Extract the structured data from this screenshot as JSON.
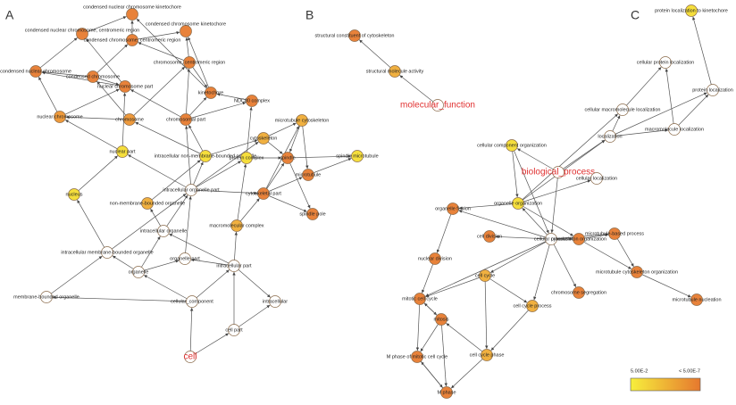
{
  "panels": [
    "A",
    "B",
    "C"
  ],
  "nodes": [
    {
      "label": "condensed nuclear chromosome kinetochore",
      "fill": "#e8823a"
    },
    {
      "label": "condensed chromosome kinetochore",
      "fill": "#e8823a"
    },
    {
      "label": "condensed nuclear chromosome, centromeric region",
      "fill": "#e8823a"
    },
    {
      "label": "condensed chromosome, centromeric region",
      "fill": "#e8823a"
    },
    {
      "label": "condensed nuclear chromosome",
      "fill": "#e8823a"
    },
    {
      "label": "condensed chromosome",
      "fill": "#e8823a"
    },
    {
      "label": "nuclear chromosome part",
      "fill": "#e8823a"
    },
    {
      "label": "chromosome, centromeric region",
      "fill": "#e8823a"
    },
    {
      "label": "kinetochore",
      "fill": "#e8823a"
    },
    {
      "label": "NDC80 complex",
      "fill": "#e8823a"
    },
    {
      "label": "nuclear chromosome",
      "fill": "#ee9a3c"
    },
    {
      "label": "chromosome",
      "fill": "#ee9a3c"
    },
    {
      "label": "chromosomal part",
      "fill": "#e8823a"
    },
    {
      "label": "microtubule cytoskeleton",
      "fill": "#f0b040"
    },
    {
      "label": "cytoskeleton",
      "fill": "#f0b040"
    },
    {
      "label": "intracellular non-membrane-bounded organelle",
      "fill": "#f5de3c"
    },
    {
      "label": "protein complex",
      "fill": "#f5de3c"
    },
    {
      "label": "spindle",
      "fill": "#e8823a"
    },
    {
      "label": "spindle microtubule",
      "fill": "#f5de3c"
    },
    {
      "label": "microtubule",
      "fill": "#e8823a"
    },
    {
      "label": "nuclear part",
      "fill": "#f5de3c"
    },
    {
      "label": "nucleus",
      "fill": "#f5de3c"
    },
    {
      "label": "intracellular organelle part",
      "fill": "#ffffff"
    },
    {
      "label": "cytoskeletal part",
      "fill": "#e8823a"
    },
    {
      "label": "spindle pole",
      "fill": "#e8823a"
    },
    {
      "label": "non-membrane-bounded organelle",
      "fill": "#f0b040"
    },
    {
      "label": "intracellular organelle",
      "fill": "#ffffff"
    },
    {
      "label": "macromolecular complex",
      "fill": "#f0b040"
    },
    {
      "label": "intracellular membrane-bounded organelle",
      "fill": "#ffffff"
    },
    {
      "label": "organelle part",
      "fill": "#ffffff"
    },
    {
      "label": "organelle",
      "fill": "#ffffff"
    },
    {
      "label": "intracellular part",
      "fill": "#ffffff"
    },
    {
      "label": "membrane-bounded organelle",
      "fill": "#ffffff"
    },
    {
      "label": "cellular_component",
      "fill": "#ffffff"
    },
    {
      "label": "intracellular",
      "fill": "#ffffff"
    },
    {
      "label": "cell part",
      "fill": "#ffffff"
    },
    {
      "label": "cell",
      "fill": "#ffffff"
    },
    {
      "label": "structural constituent of cytoskeleton",
      "fill": "#e8823a"
    },
    {
      "label": "structural molecule activity",
      "fill": "#f0b040"
    },
    {
      "label": "molecular_function",
      "fill": "#ffffff"
    },
    {
      "label": "protein localization to kinetochore",
      "fill": "#f5de3c"
    },
    {
      "label": "cellular protein localization",
      "fill": "#ffffff"
    },
    {
      "label": "protein localization",
      "fill": "#ffffff"
    },
    {
      "label": "cellular macromolecule localization",
      "fill": "#ffffff"
    },
    {
      "label": "macromolecule localization",
      "fill": "#ffffff"
    },
    {
      "label": "localization",
      "fill": "#ffffff"
    },
    {
      "label": "cellular component organization",
      "fill": "#f5de3c"
    },
    {
      "label": "biological_process",
      "fill": "#ffffff"
    },
    {
      "label": "cellular localization",
      "fill": "#ffffff"
    },
    {
      "label": "organelle organization",
      "fill": "#f5de3c"
    },
    {
      "label": "organelle fission",
      "fill": "#e8823a"
    },
    {
      "label": "cell division",
      "fill": "#e8823a"
    },
    {
      "label": "cellular process",
      "fill": "#ffffff"
    },
    {
      "label": "cytoskeleton organization",
      "fill": "#e8823a"
    },
    {
      "label": "microtubule-based process",
      "fill": "#e8823a"
    },
    {
      "label": "nuclear division",
      "fill": "#e8823a"
    },
    {
      "label": "microtubule cytoskeleton organization",
      "fill": "#e8823a"
    },
    {
      "label": "cell cycle",
      "fill": "#f0b040"
    },
    {
      "label": "mitotic cell cycle",
      "fill": "#e8823a"
    },
    {
      "label": "chromosome segregation",
      "fill": "#e8823a"
    },
    {
      "label": "cell cycle process",
      "fill": "#f0b040"
    },
    {
      "label": "microtubule nucleation",
      "fill": "#e8823a"
    },
    {
      "label": "mitosis",
      "fill": "#e8823a"
    },
    {
      "label": "M phase of mitotic cell cycle",
      "fill": "#e8823a"
    },
    {
      "label": "cell cycle phase",
      "fill": "#f0b040"
    },
    {
      "label": "M phase",
      "fill": "#e8823a"
    }
  ],
  "legend": {
    "low": "5.00E-2",
    "high": "< 5.00E-7"
  }
}
